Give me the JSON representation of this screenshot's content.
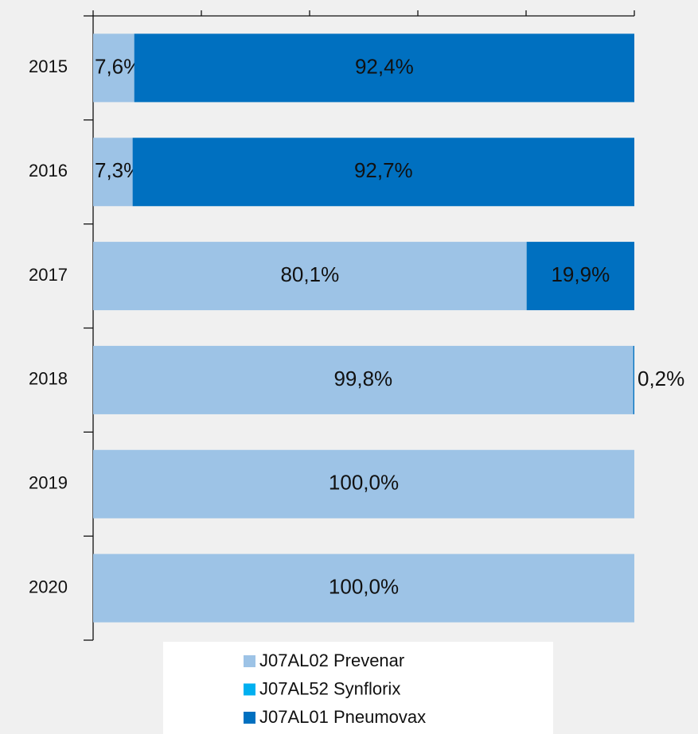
{
  "chart_data": {
    "type": "bar",
    "orientation": "horizontal",
    "stacked": true,
    "categories": [
      "2015",
      "2016",
      "2017",
      "2018",
      "2019",
      "2020"
    ],
    "series": [
      {
        "name": "J07AL02 Prevenar",
        "color": "#9dc3e6",
        "values": [
          7.6,
          7.3,
          80.1,
          99.8,
          100,
          100
        ],
        "value_labels": [
          "7,6%",
          "7,3%",
          "80,1%",
          "99,8%",
          "100,0%",
          "100,0%"
        ]
      },
      {
        "name": "J07AL52 Synflorix",
        "color": "#00b0f0",
        "values": [
          0,
          0,
          0,
          0,
          0,
          0
        ]
      },
      {
        "name": "J07AL01 Pneumovax",
        "color": "#0070c0",
        "values": [
          92.4,
          92.7,
          19.9,
          0.2,
          0,
          0
        ],
        "value_labels": [
          "92,4%",
          "92,7%",
          "19,9%",
          "0,2%",
          null,
          null
        ]
      }
    ],
    "xlim": [
      0,
      100
    ],
    "xticks": [
      0,
      20,
      40,
      60,
      80,
      100
    ]
  }
}
